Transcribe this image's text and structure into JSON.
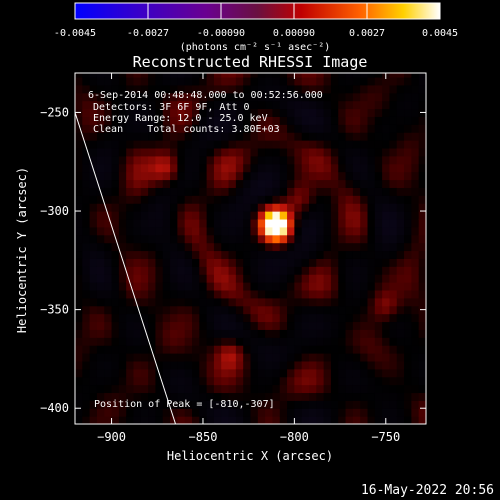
{
  "title": "Reconstructed RHESSI Image",
  "info_lines": [
    "6-Sep-2014 00:48:48.000 to 00:52:56.000",
    "Detectors: 3F 6F 9F, Att 0",
    "Energy Range: 12.0 - 25.0 keV",
    "Clean    Total counts: 3.80E+03"
  ],
  "peak_text": "Position of Peak = [-810,-307]",
  "timestamp": "16-May-2022 20:56",
  "colorbar": {
    "min": -0.0045,
    "max": 0.0045,
    "tick_labels": [
      "-0.0045",
      "-0.0027",
      "-0.00090",
      "0.00090",
      "0.0027",
      "0.0045"
    ],
    "units_label": "(photons cm⁻² s⁻¹ asec⁻²)",
    "colormap": "rainbow-heat"
  },
  "chart_data": {
    "type": "heatmap",
    "title": "Reconstructed RHESSI Image",
    "xlabel": "Heliocentric X (arcsec)",
    "ylabel": "Heliocentric Y (arcsec)",
    "xlim": [
      -920,
      -728
    ],
    "ylim": [
      -408,
      -230
    ],
    "x_tick_labels": [
      "−900",
      "−850",
      "−800",
      "−750"
    ],
    "x_ticks": [
      -900,
      -850,
      -800,
      -750
    ],
    "y_tick_labels": [
      "−250",
      "−300",
      "−350",
      "−400"
    ],
    "y_ticks": [
      -250,
      -300,
      -350,
      -400
    ],
    "peak": {
      "x": -810,
      "y": -307
    },
    "secondary_sources": [
      {
        "x": -870,
        "y": -278
      },
      {
        "x": -798,
        "y": -295
      },
      {
        "x": -750,
        "y": -348
      },
      {
        "x": -835,
        "y": -372
      }
    ],
    "limb_line": [
      {
        "x": -920,
        "y": -250
      },
      {
        "x": -865,
        "y": -408
      }
    ],
    "grid": false
  }
}
